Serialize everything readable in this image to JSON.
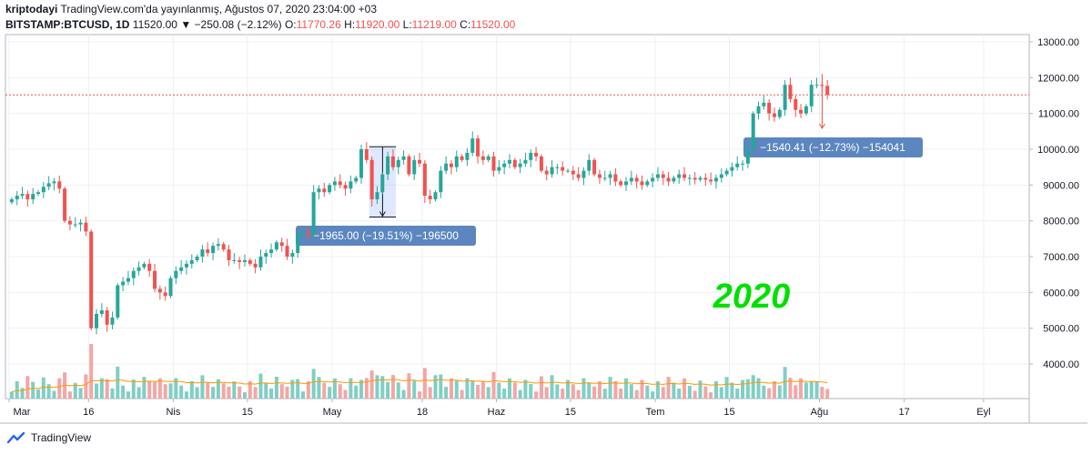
{
  "header": {
    "author": "kriptodayi",
    "published": "TradingView.com'da yayınlanmış, Ağustos 07, 2020 23:04:00 +03",
    "symbol": "BITSTAMP:BTCUSD, 1D",
    "last": "11520.00",
    "change": "▼ −250.08 (−2.12%)",
    "o_label": "O:",
    "o_value": "11770.26",
    "h_label": "H:",
    "h_value": "11920.00",
    "l_label": "L:",
    "l_value": "11219.00",
    "c_label": "C:",
    "c_value": "11520.00"
  },
  "footer": {
    "brand": "TradingView"
  },
  "colors": {
    "up": "#26a69a",
    "down": "#ef5350",
    "up_vol": "#7fcfc4",
    "down_vol": "#f4a6a4",
    "ma": "#ff9800",
    "price_line": "#ef5350",
    "label_bg": "#5b86bf",
    "watermark": "#00e000"
  },
  "chart_data": {
    "type": "candlestick",
    "ylim": [
      3100,
      13000
    ],
    "y_ticks": [
      "13000.00",
      "12000.00",
      "11000.00",
      "10000.00",
      "9000.00",
      "8000.00",
      "7000.00",
      "6000.00",
      "5000.00",
      "4000.00"
    ],
    "y_tick_values": [
      13000,
      12000,
      11000,
      10000,
      9000,
      8000,
      7000,
      6000,
      5000,
      4000
    ],
    "x_ticks": [
      {
        "label": "Mar",
        "day": 0
      },
      {
        "label": "16",
        "day": 15
      },
      {
        "label": "Nis",
        "day": 31
      },
      {
        "label": "15",
        "day": 45
      },
      {
        "label": "May",
        "day": 61
      },
      {
        "label": "18",
        "day": 78
      },
      {
        "label": "Haz",
        "day": 92
      },
      {
        "label": "15",
        "day": 106
      },
      {
        "label": "Tem",
        "day": 122
      },
      {
        "label": "15",
        "day": 136
      },
      {
        "label": "Ağu",
        "day": 153
      },
      {
        "label": "17",
        "day": 169
      },
      {
        "label": "Eyl",
        "day": 184
      }
    ],
    "last_price": 11520,
    "closes": [
      8600,
      8700,
      8750,
      8600,
      8750,
      8800,
      8950,
      9050,
      9100,
      8900,
      8000,
      7900,
      7900,
      7950,
      7700,
      5000,
      5400,
      5500,
      5100,
      5300,
      6200,
      6300,
      6400,
      6600,
      6700,
      6800,
      6600,
      6100,
      6000,
      5900,
      6400,
      6600,
      6700,
      6800,
      6900,
      7000,
      7200,
      7100,
      7300,
      7350,
      7200,
      6900,
      6900,
      6850,
      6900,
      6800,
      6700,
      7000,
      7100,
      7200,
      7400,
      7300,
      7000,
      7100,
      7600,
      7700,
      7600,
      8800,
      8900,
      8800,
      9000,
      9100,
      9000,
      8900,
      9100,
      9200,
      10000,
      9700,
      8600,
      8800,
      9300,
      9800,
      9500,
      9700,
      9800,
      9300,
      9700,
      9600,
      8700,
      8600,
      8800,
      9400,
      9600,
      9500,
      9800,
      9700,
      9900,
      10300,
      9800,
      9700,
      9800,
      9400,
      9500,
      9600,
      9700,
      9500,
      9600,
      9700,
      9900,
      9800,
      9400,
      9300,
      9500,
      9500,
      9400,
      9400,
      9300,
      9200,
      9400,
      9700,
      9300,
      9200,
      9200,
      9300,
      9100,
      9000,
      9100,
      9200,
      9100,
      9000,
      9100,
      9200,
      9300,
      9200,
      9100,
      9200,
      9300,
      9200,
      9200,
      9150,
      9200,
      9150,
      9100,
      9200,
      9300,
      9400,
      9500,
      9600,
      9600,
      10000,
      11000,
      11200,
      11300,
      11000,
      10900,
      11100,
      11800,
      11400,
      11100,
      11000,
      11200,
      11800,
      11800,
      11770,
      11520
    ],
    "annotations": [
      {
        "text": "−1965.00 (−19.51%) −196500",
        "type": "range-measure",
        "from_day": 68,
        "to_day": 72,
        "from_price": 10070,
        "to_price": 8105
      },
      {
        "text": "−1540.41 (−12.73%) −154041",
        "type": "range-measure",
        "from_day": 153,
        "price_from": 12100,
        "price_to": 10560
      }
    ],
    "watermark_text": "2020"
  }
}
